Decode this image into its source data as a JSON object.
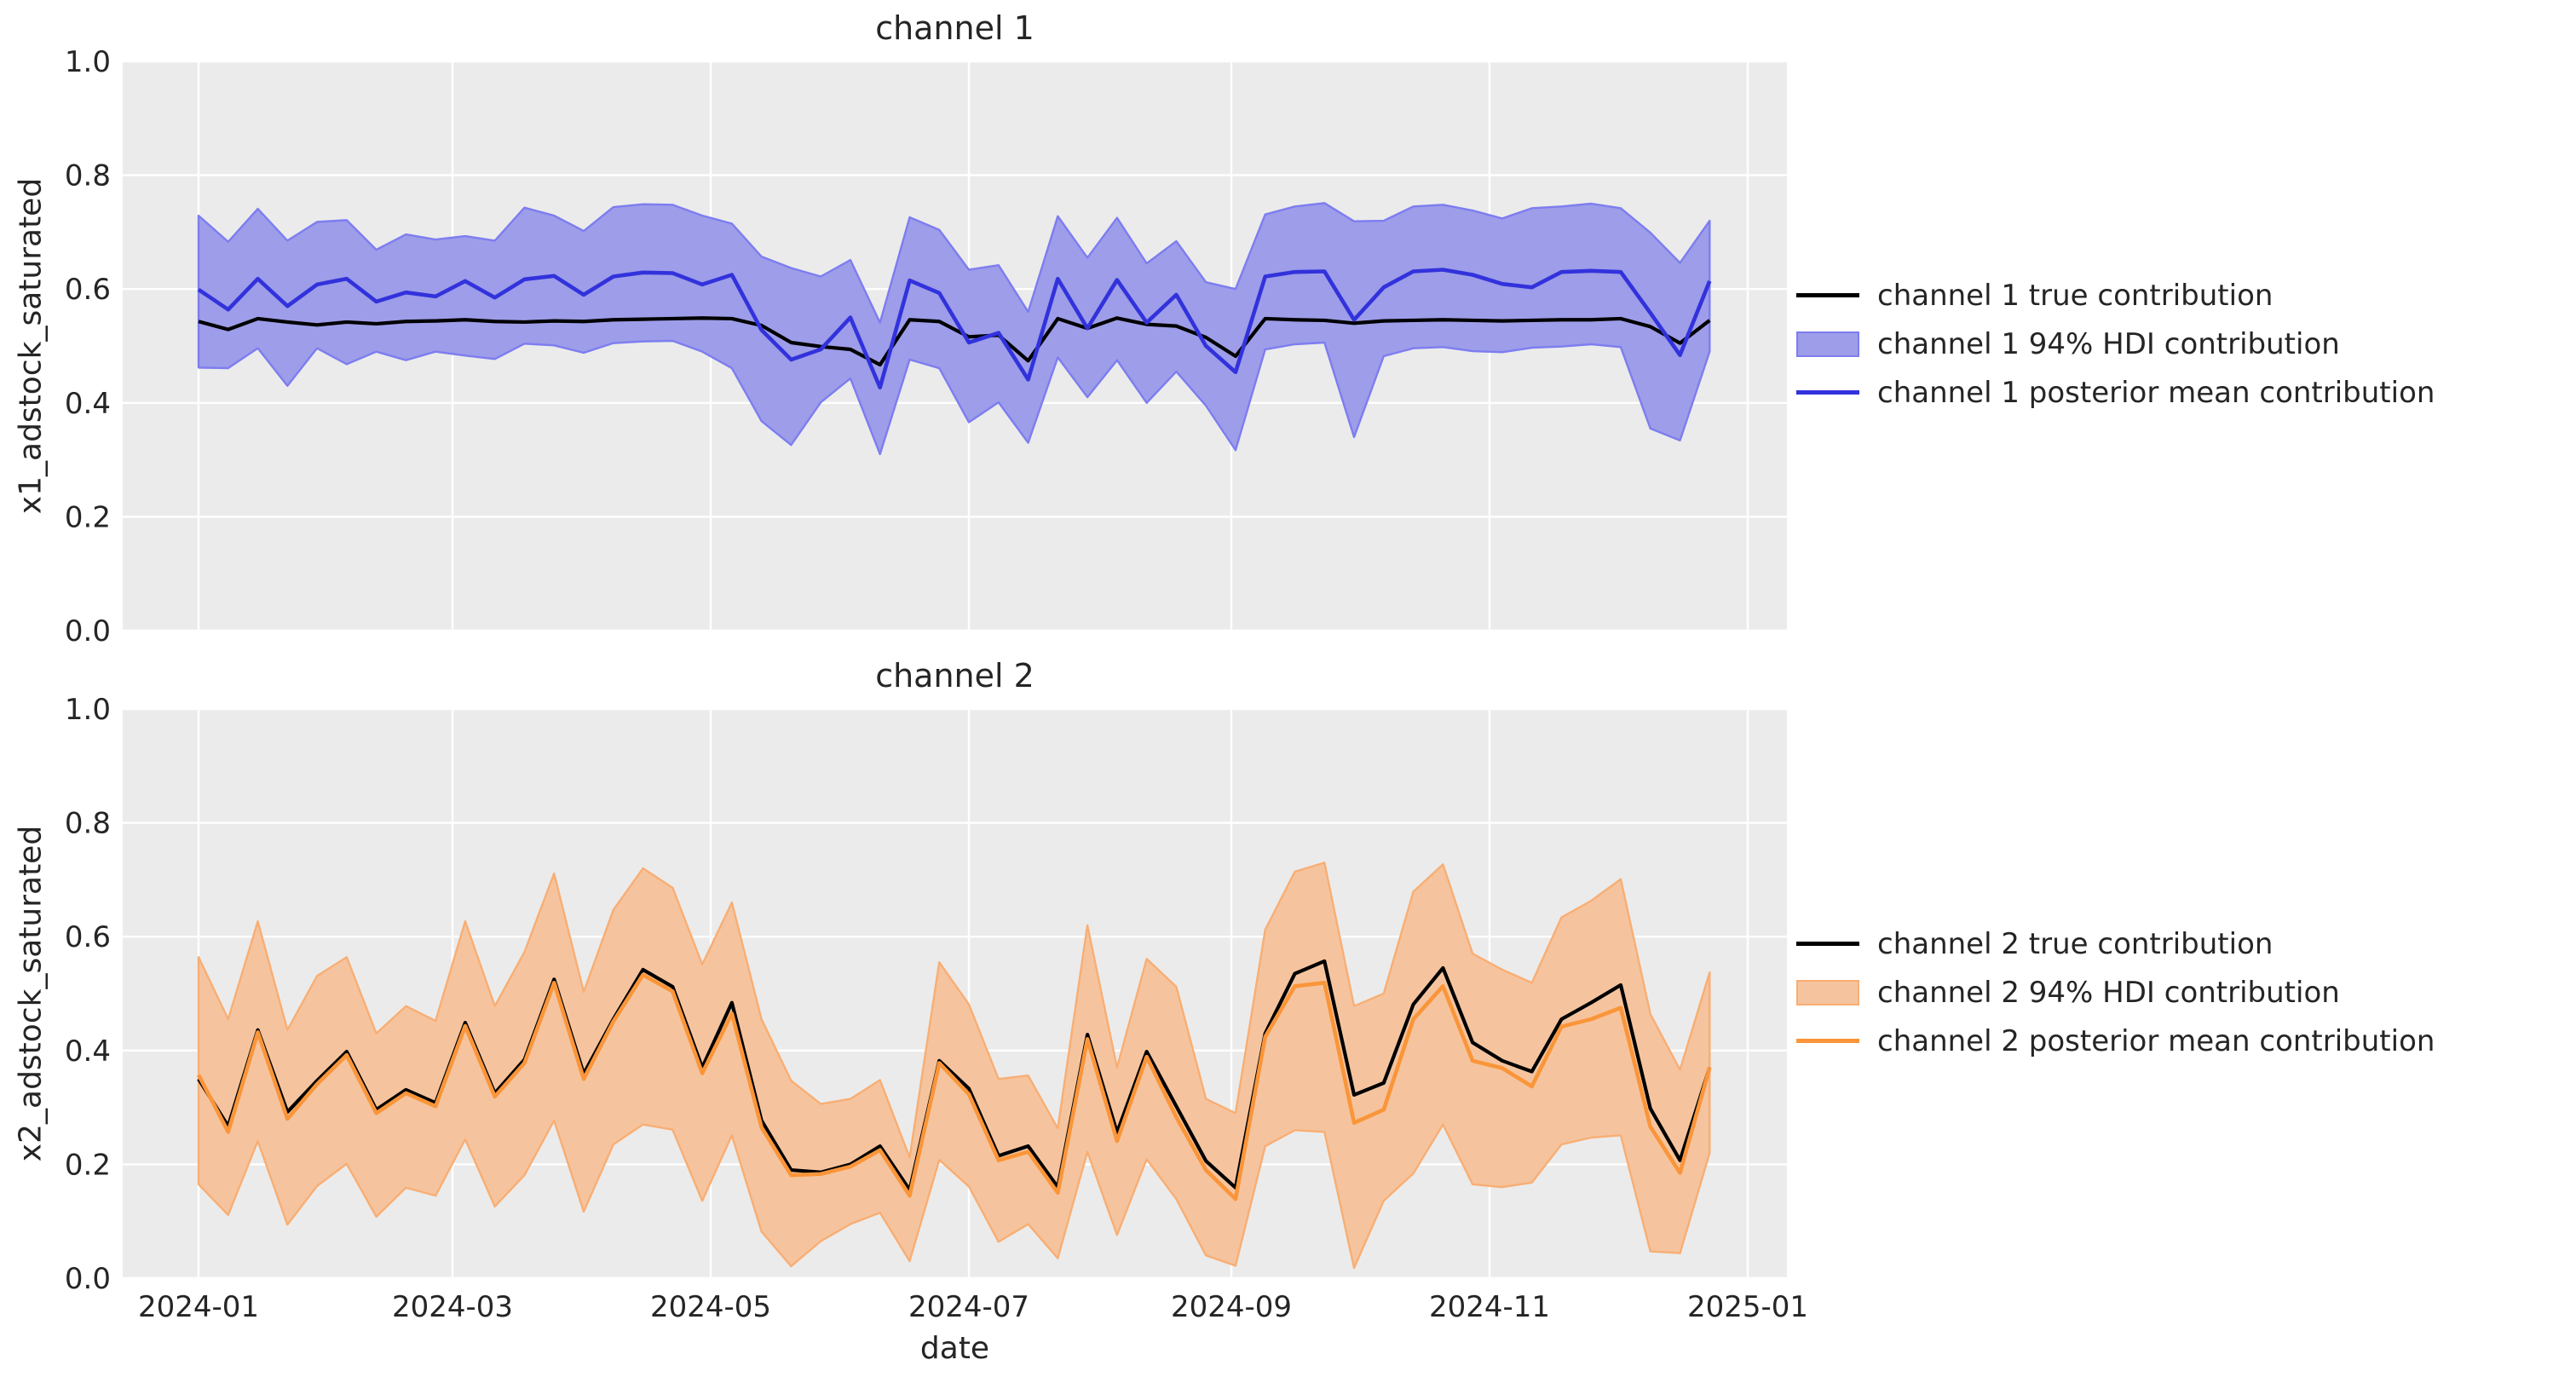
{
  "figure": {
    "colors": {
      "figure_bg": "#ffffff",
      "axes_bg": "#ebebeb",
      "grid": "#ffffff",
      "text": "#252525",
      "true_line": "#000000",
      "ch1_line": "#3232dc",
      "ch1_band_fill": "#9d9de9",
      "ch1_band_edge": "#7d7df0",
      "ch2_line": "#fa9539",
      "ch2_band_fill": "#f5c49e",
      "ch2_band_edge": "#f8ae74"
    }
  },
  "chart_data": [
    {
      "type": "line",
      "title": "channel 1",
      "ylabel": "x1_adstock_saturated",
      "xlabel": "",
      "ylim": [
        0.0,
        1.0
      ],
      "yticks": [
        0.0,
        0.2,
        0.4,
        0.6,
        0.8,
        1.0
      ],
      "ytick_labels": [
        "0.0",
        "0.2",
        "0.4",
        "0.6",
        "0.8",
        "1.0"
      ],
      "x_start_date": "2024-01-01",
      "x_step_days": 7,
      "n_points": 52,
      "xlim_days": [
        -18,
        375
      ],
      "x_ticks": [
        {
          "label": "2024-01",
          "day": 0
        },
        {
          "label": "2024-03",
          "day": 60
        },
        {
          "label": "2024-05",
          "day": 121
        },
        {
          "label": "2024-07",
          "day": 182
        },
        {
          "label": "2024-09",
          "day": 244
        },
        {
          "label": "2024-11",
          "day": 305
        },
        {
          "label": "2025-01",
          "day": 366
        }
      ],
      "grid": true,
      "legend_position": "center right, outside axes",
      "series": [
        {
          "name": "channel 1 true contribution",
          "kind": "line",
          "color_key": "true_line",
          "values": [
            0.543,
            0.529,
            0.548,
            0.542,
            0.537,
            0.542,
            0.539,
            0.543,
            0.544,
            0.546,
            0.543,
            0.542,
            0.544,
            0.543,
            0.546,
            0.547,
            0.548,
            0.549,
            0.548,
            0.536,
            0.506,
            0.499,
            0.494,
            0.467,
            0.546,
            0.543,
            0.516,
            0.519,
            0.474,
            0.548,
            0.531,
            0.549,
            0.538,
            0.535,
            0.515,
            0.482,
            0.548,
            0.546,
            0.545,
            0.54,
            0.544,
            0.545,
            0.546,
            0.545,
            0.544,
            0.545,
            0.546,
            0.546,
            0.548,
            0.534,
            0.505,
            0.545
          ]
        },
        {
          "name": "channel 1 94% HDI contribution",
          "kind": "band",
          "fill_key": "ch1_band_fill",
          "edge_key": "ch1_band_edge",
          "upper": [
            0.729,
            0.683,
            0.741,
            0.685,
            0.718,
            0.721,
            0.669,
            0.696,
            0.687,
            0.693,
            0.685,
            0.743,
            0.729,
            0.702,
            0.744,
            0.749,
            0.748,
            0.729,
            0.715,
            0.657,
            0.637,
            0.622,
            0.651,
            0.541,
            0.726,
            0.704,
            0.634,
            0.642,
            0.56,
            0.728,
            0.655,
            0.725,
            0.645,
            0.684,
            0.612,
            0.6,
            0.731,
            0.745,
            0.751,
            0.719,
            0.72,
            0.745,
            0.748,
            0.738,
            0.724,
            0.742,
            0.745,
            0.75,
            0.742,
            0.699,
            0.646,
            0.72
          ],
          "lower": [
            0.462,
            0.461,
            0.496,
            0.43,
            0.496,
            0.468,
            0.49,
            0.475,
            0.49,
            0.483,
            0.477,
            0.504,
            0.501,
            0.488,
            0.505,
            0.508,
            0.509,
            0.49,
            0.461,
            0.368,
            0.326,
            0.401,
            0.443,
            0.31,
            0.476,
            0.461,
            0.366,
            0.401,
            0.33,
            0.48,
            0.41,
            0.475,
            0.4,
            0.455,
            0.395,
            0.317,
            0.494,
            0.503,
            0.506,
            0.34,
            0.482,
            0.496,
            0.498,
            0.491,
            0.489,
            0.497,
            0.499,
            0.503,
            0.498,
            0.355,
            0.334,
            0.49
          ]
        },
        {
          "name": "channel 1 posterior mean contribution",
          "kind": "line",
          "color_key": "ch1_line",
          "values": [
            0.599,
            0.564,
            0.618,
            0.57,
            0.608,
            0.618,
            0.578,
            0.594,
            0.587,
            0.614,
            0.585,
            0.617,
            0.623,
            0.59,
            0.622,
            0.629,
            0.628,
            0.608,
            0.625,
            0.528,
            0.476,
            0.494,
            0.55,
            0.427,
            0.615,
            0.593,
            0.506,
            0.523,
            0.441,
            0.618,
            0.531,
            0.616,
            0.541,
            0.59,
            0.5,
            0.454,
            0.622,
            0.63,
            0.631,
            0.546,
            0.603,
            0.631,
            0.634,
            0.625,
            0.609,
            0.603,
            0.63,
            0.632,
            0.63,
            0.558,
            0.484,
            0.614
          ]
        }
      ]
    },
    {
      "type": "line",
      "title": "channel 2",
      "ylabel": "x2_adstock_saturated",
      "xlabel": "date",
      "ylim": [
        0.0,
        1.0
      ],
      "yticks": [
        0.0,
        0.2,
        0.4,
        0.6,
        0.8,
        1.0
      ],
      "ytick_labels": [
        "0.0",
        "0.2",
        "0.4",
        "0.6",
        "0.8",
        "1.0"
      ],
      "x_start_date": "2024-01-01",
      "x_step_days": 7,
      "n_points": 52,
      "xlim_days": [
        -18,
        375
      ],
      "x_ticks": [
        {
          "label": "2024-01",
          "day": 0
        },
        {
          "label": "2024-03",
          "day": 60
        },
        {
          "label": "2024-05",
          "day": 121
        },
        {
          "label": "2024-07",
          "day": 182
        },
        {
          "label": "2024-09",
          "day": 244
        },
        {
          "label": "2024-11",
          "day": 305
        },
        {
          "label": "2025-01",
          "day": 366
        }
      ],
      "grid": true,
      "legend_position": "center right, outside axes",
      "series": [
        {
          "name": "channel 2 true contribution",
          "kind": "line",
          "color_key": "true_line",
          "values": [
            0.35,
            0.267,
            0.436,
            0.292,
            0.347,
            0.398,
            0.296,
            0.331,
            0.308,
            0.449,
            0.325,
            0.384,
            0.525,
            0.359,
            0.455,
            0.542,
            0.512,
            0.37,
            0.484,
            0.277,
            0.19,
            0.186,
            0.2,
            0.232,
            0.155,
            0.382,
            0.333,
            0.215,
            0.232,
            0.16,
            0.428,
            0.256,
            0.398,
            0.302,
            0.206,
            0.159,
            0.43,
            0.535,
            0.557,
            0.322,
            0.343,
            0.481,
            0.545,
            0.414,
            0.382,
            0.363,
            0.455,
            0.484,
            0.515,
            0.298,
            0.207,
            0.37
          ]
        },
        {
          "name": "channel 2 94% HDI contribution",
          "kind": "band",
          "fill_key": "ch2_band_fill",
          "edge_key": "ch2_band_edge",
          "upper": [
            0.564,
            0.455,
            0.627,
            0.436,
            0.531,
            0.564,
            0.43,
            0.478,
            0.452,
            0.627,
            0.478,
            0.573,
            0.711,
            0.503,
            0.647,
            0.72,
            0.686,
            0.551,
            0.66,
            0.455,
            0.347,
            0.306,
            0.315,
            0.348,
            0.212,
            0.555,
            0.481,
            0.35,
            0.356,
            0.263,
            0.62,
            0.37,
            0.561,
            0.512,
            0.315,
            0.29,
            0.612,
            0.714,
            0.73,
            0.478,
            0.5,
            0.679,
            0.727,
            0.57,
            0.542,
            0.519,
            0.634,
            0.663,
            0.701,
            0.464,
            0.366,
            0.537
          ],
          "lower": [
            0.165,
            0.111,
            0.241,
            0.094,
            0.162,
            0.201,
            0.108,
            0.159,
            0.145,
            0.244,
            0.126,
            0.181,
            0.277,
            0.117,
            0.235,
            0.27,
            0.261,
            0.136,
            0.251,
            0.082,
            0.021,
            0.065,
            0.095,
            0.115,
            0.03,
            0.208,
            0.161,
            0.064,
            0.095,
            0.035,
            0.222,
            0.076,
            0.209,
            0.139,
            0.04,
            0.022,
            0.232,
            0.26,
            0.257,
            0.018,
            0.136,
            0.184,
            0.27,
            0.165,
            0.16,
            0.168,
            0.235,
            0.247,
            0.251,
            0.047,
            0.044,
            0.22
          ]
        },
        {
          "name": "channel 2 posterior mean contribution",
          "kind": "line",
          "color_key": "ch2_line",
          "values": [
            0.357,
            0.257,
            0.432,
            0.28,
            0.341,
            0.392,
            0.29,
            0.325,
            0.302,
            0.443,
            0.319,
            0.378,
            0.519,
            0.35,
            0.451,
            0.533,
            0.504,
            0.36,
            0.465,
            0.265,
            0.181,
            0.183,
            0.196,
            0.225,
            0.145,
            0.378,
            0.323,
            0.207,
            0.222,
            0.15,
            0.42,
            0.241,
            0.389,
            0.283,
            0.19,
            0.139,
            0.424,
            0.513,
            0.519,
            0.273,
            0.296,
            0.455,
            0.513,
            0.382,
            0.369,
            0.337,
            0.442,
            0.455,
            0.475,
            0.266,
            0.185,
            0.37
          ]
        }
      ]
    }
  ]
}
